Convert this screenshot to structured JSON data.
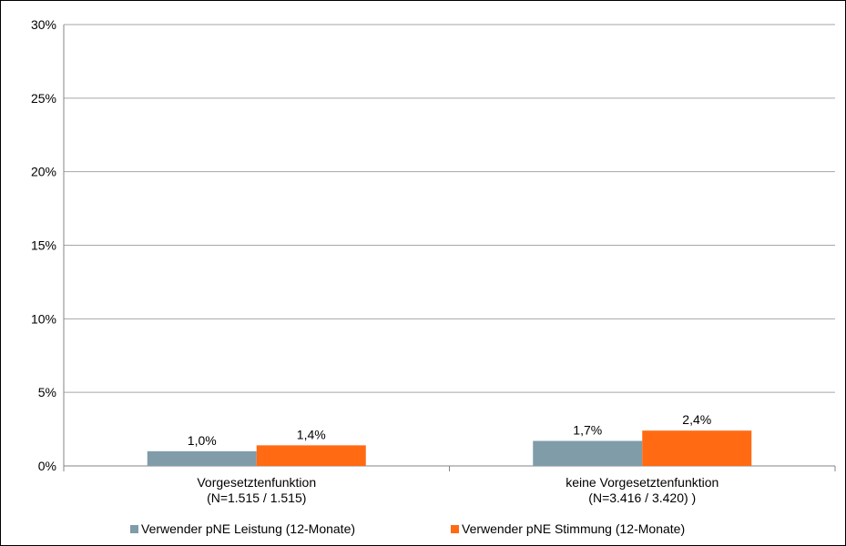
{
  "chart_data": {
    "type": "bar",
    "title": "",
    "xlabel": "",
    "ylabel": "",
    "ylim": [
      0,
      30
    ],
    "yticks": [
      "0%",
      "5%",
      "10%",
      "15%",
      "20%",
      "25%",
      "30%"
    ],
    "grid": true,
    "legend_position": "bottom",
    "categories": [
      [
        "Vorgesetztenfunktion",
        "(N=1.515 / 1.515)"
      ],
      [
        "keine Vorgesetztenfunktion",
        "(N=3.416 / 3.420) )"
      ]
    ],
    "series": [
      {
        "name": "Verwender pNE Leistung (12-Monate)",
        "color": "#7F9CA8",
        "values": [
          1.0,
          1.7
        ],
        "labels": [
          "1,0%",
          "1,7%"
        ]
      },
      {
        "name": "Verwender pNE Stimmung (12-Monate)",
        "color": "#FF6A13",
        "values": [
          1.4,
          2.4
        ],
        "labels": [
          "1,4%",
          "2,4%"
        ]
      }
    ]
  }
}
